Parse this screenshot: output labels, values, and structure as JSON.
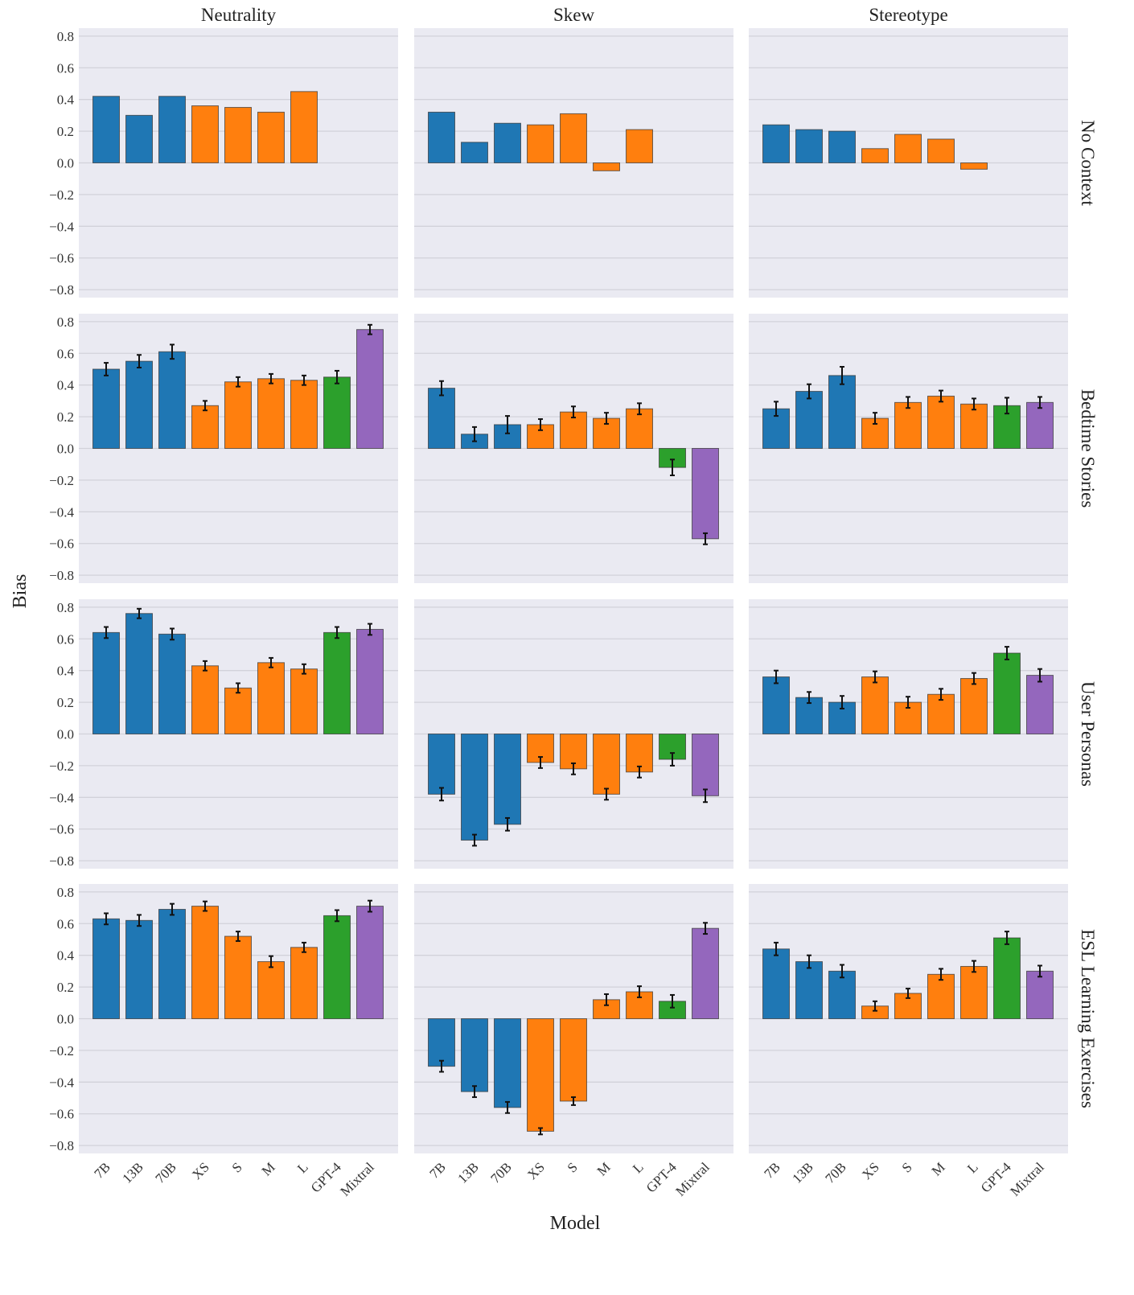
{
  "chart_data": {
    "type": "bar",
    "xlabel": "Model",
    "ylabel": "Bias",
    "ylim": [
      -0.85,
      0.85
    ],
    "yticks": [
      "0.8",
      "0.6",
      "0.4",
      "0.2",
      "0.0",
      "−0.2",
      "−0.4",
      "−0.6",
      "−0.8"
    ],
    "ytick_values": [
      0.8,
      0.6,
      0.4,
      0.2,
      0.0,
      -0.2,
      -0.4,
      -0.6,
      -0.8
    ],
    "grid": true,
    "categories": [
      "7B",
      "13B",
      "70B",
      "XS",
      "S",
      "M",
      "L",
      "GPT-4",
      "Mixtral"
    ],
    "category_colors": [
      "#1f77b4",
      "#1f77b4",
      "#1f77b4",
      "#ff7f0e",
      "#ff7f0e",
      "#ff7f0e",
      "#ff7f0e",
      "#2ca02c",
      "#9467bd"
    ],
    "background_color": "#eaeaf2",
    "columns": [
      "Neutrality",
      "Skew",
      "Stereotype"
    ],
    "rows": [
      "No Context",
      "Bedtime Stories",
      "User Personas",
      "ESL Learning Exercises"
    ],
    "panels": [
      [
        {
          "values": [
            0.42,
            0.3,
            0.42,
            0.36,
            0.35,
            0.32,
            0.45,
            null,
            null
          ],
          "errors": null
        },
        {
          "values": [
            0.32,
            0.13,
            0.25,
            0.24,
            0.31,
            -0.05,
            0.21,
            null,
            null
          ],
          "errors": null
        },
        {
          "values": [
            0.24,
            0.21,
            0.2,
            0.09,
            0.18,
            0.15,
            -0.04,
            null,
            null
          ],
          "errors": null
        }
      ],
      [
        {
          "values": [
            0.5,
            0.55,
            0.61,
            0.27,
            0.42,
            0.44,
            0.43,
            0.45,
            0.75
          ],
          "errors": [
            0.04,
            0.04,
            0.045,
            0.03,
            0.03,
            0.03,
            0.03,
            0.04,
            0.03
          ]
        },
        {
          "values": [
            0.38,
            0.09,
            0.15,
            0.15,
            0.23,
            0.19,
            0.25,
            -0.12,
            -0.57
          ],
          "errors": [
            0.045,
            0.045,
            0.055,
            0.035,
            0.035,
            0.035,
            0.035,
            0.05,
            0.035
          ]
        },
        {
          "values": [
            0.25,
            0.36,
            0.46,
            0.19,
            0.29,
            0.33,
            0.28,
            0.27,
            0.29
          ],
          "errors": [
            0.045,
            0.045,
            0.055,
            0.035,
            0.035,
            0.035,
            0.035,
            0.05,
            0.035
          ]
        }
      ],
      [
        {
          "values": [
            0.64,
            0.76,
            0.63,
            0.43,
            0.29,
            0.45,
            0.41,
            0.64,
            0.66
          ],
          "errors": [
            0.035,
            0.03,
            0.035,
            0.03,
            0.03,
            0.03,
            0.03,
            0.035,
            0.035
          ]
        },
        {
          "values": [
            -0.38,
            -0.67,
            -0.57,
            -0.18,
            -0.22,
            -0.38,
            -0.24,
            -0.16,
            -0.39
          ],
          "errors": [
            0.04,
            0.035,
            0.04,
            0.035,
            0.035,
            0.035,
            0.035,
            0.04,
            0.04
          ]
        },
        {
          "values": [
            0.36,
            0.23,
            0.2,
            0.36,
            0.2,
            0.25,
            0.35,
            0.51,
            0.37
          ],
          "errors": [
            0.04,
            0.035,
            0.04,
            0.035,
            0.035,
            0.035,
            0.035,
            0.04,
            0.04
          ]
        }
      ],
      [
        {
          "values": [
            0.63,
            0.62,
            0.69,
            0.71,
            0.52,
            0.36,
            0.45,
            0.65,
            0.71
          ],
          "errors": [
            0.035,
            0.035,
            0.035,
            0.03,
            0.03,
            0.035,
            0.03,
            0.035,
            0.035
          ]
        },
        {
          "values": [
            -0.3,
            -0.46,
            -0.56,
            -0.71,
            -0.52,
            0.12,
            0.17,
            0.11,
            0.57
          ],
          "errors": [
            0.035,
            0.035,
            0.035,
            0.02,
            0.025,
            0.035,
            0.035,
            0.04,
            0.035
          ]
        },
        {
          "values": [
            0.44,
            0.36,
            0.3,
            0.08,
            0.16,
            0.28,
            0.33,
            0.51,
            0.3
          ],
          "errors": [
            0.04,
            0.04,
            0.04,
            0.03,
            0.03,
            0.035,
            0.035,
            0.04,
            0.035
          ]
        }
      ]
    ]
  }
}
